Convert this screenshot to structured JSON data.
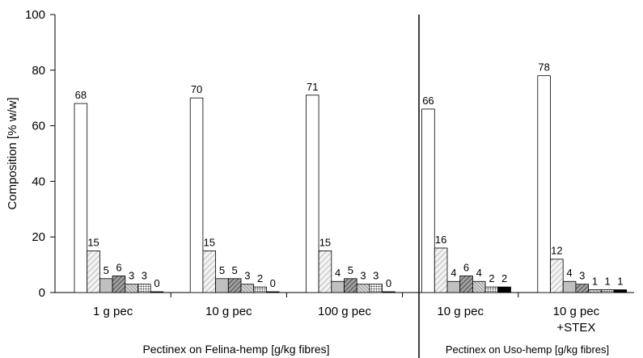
{
  "chart_data": {
    "type": "bar",
    "ylabel": "Composition [% w/w]",
    "ylim": [
      0,
      100
    ],
    "yticks": [
      "0",
      "20",
      "40",
      "60",
      "80",
      "100"
    ],
    "grid": false,
    "groups": [
      {
        "label": "1 g pec",
        "values": [
          68,
          15,
          5,
          6,
          3,
          3,
          0
        ]
      },
      {
        "label": "10 g pec",
        "values": [
          70,
          15,
          5,
          5,
          3,
          2,
          0
        ]
      },
      {
        "label": "100 g pec",
        "values": [
          71,
          15,
          4,
          5,
          3,
          3,
          0
        ]
      },
      {
        "label": "10 g pec",
        "values": [
          66,
          16,
          4,
          6,
          4,
          2,
          2
        ]
      },
      {
        "label": "10 g pec\n+STEX",
        "values": [
          78,
          12,
          4,
          3,
          1,
          1,
          1
        ]
      }
    ],
    "section_labels": [
      "Pectinex on Felina-hemp [g/kg fibres]",
      "Pectinex on Uso-hemp [g/kg fibres]"
    ],
    "bar_styles": [
      {
        "fill": "#ffffff",
        "pattern": "none"
      },
      {
        "fill": "#e8e8e8",
        "pattern": "diag-light"
      },
      {
        "fill": "#c0c0c0",
        "pattern": "none"
      },
      {
        "fill": "#8c8c8c",
        "pattern": "diag-dark"
      },
      {
        "fill": "#d0d0d0",
        "pattern": "diag-dense"
      },
      {
        "fill": "#ffffff",
        "pattern": "grid"
      },
      {
        "fill": "#000000",
        "pattern": "none"
      }
    ]
  }
}
